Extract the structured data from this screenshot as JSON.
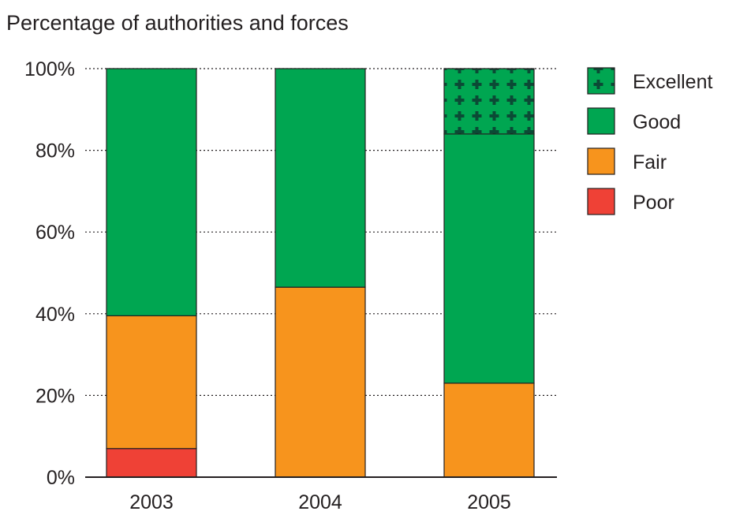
{
  "chart_data": {
    "type": "bar",
    "stacked": true,
    "title": "Percentage of authorities and forces",
    "xlabel": "",
    "ylabel": "",
    "categories": [
      "2003",
      "2004",
      "2005"
    ],
    "ylim": [
      0,
      100
    ],
    "yticks": [
      0,
      20,
      40,
      60,
      80,
      100
    ],
    "ytick_labels": [
      "0%",
      "20%",
      "40%",
      "60%",
      "80%",
      "100%"
    ],
    "grid": "horizontal dotted",
    "legend_placement": "right",
    "series": [
      {
        "name": "Poor",
        "values": [
          7,
          0,
          0
        ],
        "color": "#ef4136"
      },
      {
        "name": "Fair",
        "values": [
          32.5,
          46.5,
          23
        ],
        "color": "#f7941d"
      },
      {
        "name": "Good",
        "values": [
          60.5,
          53.5,
          61
        ],
        "color": "#00a651"
      },
      {
        "name": "Excellent",
        "values": [
          0,
          0,
          16
        ],
        "color": "#00a651",
        "pattern": "cross-hatch"
      }
    ],
    "legend_order": [
      "Excellent",
      "Good",
      "Fair",
      "Poor"
    ]
  }
}
